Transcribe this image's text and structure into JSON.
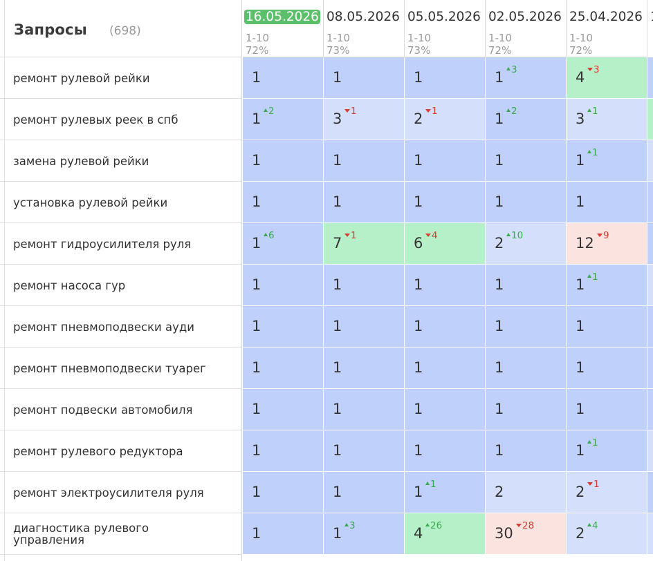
{
  "header": {
    "title": "Запросы",
    "count": "(698)"
  },
  "dates": [
    {
      "label": "16.05.2026",
      "range": "1-10",
      "pct": "72%",
      "active": true
    },
    {
      "label": "08.05.2026",
      "range": "1-10",
      "pct": "73%",
      "active": false
    },
    {
      "label": "05.05.2026",
      "range": "1-10",
      "pct": "73%",
      "active": false
    },
    {
      "label": "02.05.2026",
      "range": "1-10",
      "pct": "72%",
      "active": false
    },
    {
      "label": "25.04.2026",
      "range": "1-10",
      "pct": "72%",
      "active": false
    }
  ],
  "next_column_partial_label": "1",
  "rows": [
    {
      "query": "ремонт рулевой рейки",
      "cells": [
        {
          "value": "1",
          "delta": "",
          "dir": "",
          "tone": "top"
        },
        {
          "value": "1",
          "delta": "",
          "dir": "",
          "tone": "top"
        },
        {
          "value": "1",
          "delta": "",
          "dir": "",
          "tone": "top"
        },
        {
          "value": "1",
          "delta": "3",
          "dir": "up",
          "tone": "top"
        },
        {
          "value": "4",
          "delta": "3",
          "dir": "down",
          "tone": "good"
        }
      ],
      "edge_tone": "top"
    },
    {
      "query": "ремонт рулевых реек в спб",
      "cells": [
        {
          "value": "1",
          "delta": "2",
          "dir": "up",
          "tone": "top"
        },
        {
          "value": "3",
          "delta": "1",
          "dir": "down",
          "tone": "mid"
        },
        {
          "value": "2",
          "delta": "1",
          "dir": "down",
          "tone": "mid"
        },
        {
          "value": "1",
          "delta": "2",
          "dir": "up",
          "tone": "top"
        },
        {
          "value": "3",
          "delta": "1",
          "dir": "up",
          "tone": "mid"
        }
      ],
      "edge_tone": "good"
    },
    {
      "query": "замена рулевой рейки",
      "cells": [
        {
          "value": "1",
          "delta": "",
          "dir": "",
          "tone": "top"
        },
        {
          "value": "1",
          "delta": "",
          "dir": "",
          "tone": "top"
        },
        {
          "value": "1",
          "delta": "",
          "dir": "",
          "tone": "top"
        },
        {
          "value": "1",
          "delta": "",
          "dir": "",
          "tone": "top"
        },
        {
          "value": "1",
          "delta": "1",
          "dir": "up",
          "tone": "top"
        }
      ],
      "edge_tone": "mid"
    },
    {
      "query": "установка рулевой рейки",
      "cells": [
        {
          "value": "1",
          "delta": "",
          "dir": "",
          "tone": "top"
        },
        {
          "value": "1",
          "delta": "",
          "dir": "",
          "tone": "top"
        },
        {
          "value": "1",
          "delta": "",
          "dir": "",
          "tone": "top"
        },
        {
          "value": "1",
          "delta": "",
          "dir": "",
          "tone": "top"
        },
        {
          "value": "1",
          "delta": "",
          "dir": "",
          "tone": "top"
        }
      ],
      "edge_tone": "top"
    },
    {
      "query": "ремонт гидроусилителя руля",
      "cells": [
        {
          "value": "1",
          "delta": "6",
          "dir": "up",
          "tone": "top"
        },
        {
          "value": "7",
          "delta": "1",
          "dir": "down",
          "tone": "good"
        },
        {
          "value": "6",
          "delta": "4",
          "dir": "down",
          "tone": "good"
        },
        {
          "value": "2",
          "delta": "10",
          "dir": "up",
          "tone": "mid"
        },
        {
          "value": "12",
          "delta": "9",
          "dir": "down",
          "tone": "bad"
        }
      ],
      "edge_tone": "top"
    },
    {
      "query": "ремонт насоса гур",
      "cells": [
        {
          "value": "1",
          "delta": "",
          "dir": "",
          "tone": "top"
        },
        {
          "value": "1",
          "delta": "",
          "dir": "",
          "tone": "top"
        },
        {
          "value": "1",
          "delta": "",
          "dir": "",
          "tone": "top"
        },
        {
          "value": "1",
          "delta": "",
          "dir": "",
          "tone": "top"
        },
        {
          "value": "1",
          "delta": "1",
          "dir": "up",
          "tone": "top"
        }
      ],
      "edge_tone": "mid"
    },
    {
      "query": "ремонт пневмоподвески ауди",
      "cells": [
        {
          "value": "1",
          "delta": "",
          "dir": "",
          "tone": "top"
        },
        {
          "value": "1",
          "delta": "",
          "dir": "",
          "tone": "top"
        },
        {
          "value": "1",
          "delta": "",
          "dir": "",
          "tone": "top"
        },
        {
          "value": "1",
          "delta": "",
          "dir": "",
          "tone": "top"
        },
        {
          "value": "1",
          "delta": "",
          "dir": "",
          "tone": "top"
        }
      ],
      "edge_tone": "top"
    },
    {
      "query": "ремонт пневмоподвески туарег",
      "cells": [
        {
          "value": "1",
          "delta": "",
          "dir": "",
          "tone": "top"
        },
        {
          "value": "1",
          "delta": "",
          "dir": "",
          "tone": "top"
        },
        {
          "value": "1",
          "delta": "",
          "dir": "",
          "tone": "top"
        },
        {
          "value": "1",
          "delta": "",
          "dir": "",
          "tone": "top"
        },
        {
          "value": "1",
          "delta": "",
          "dir": "",
          "tone": "top"
        }
      ],
      "edge_tone": "top"
    },
    {
      "query": "ремонт подвески автомобиля",
      "cells": [
        {
          "value": "1",
          "delta": "",
          "dir": "",
          "tone": "top"
        },
        {
          "value": "1",
          "delta": "",
          "dir": "",
          "tone": "top"
        },
        {
          "value": "1",
          "delta": "",
          "dir": "",
          "tone": "top"
        },
        {
          "value": "1",
          "delta": "",
          "dir": "",
          "tone": "top"
        },
        {
          "value": "1",
          "delta": "",
          "dir": "",
          "tone": "top"
        }
      ],
      "edge_tone": "top"
    },
    {
      "query": "ремонт рулевого редуктора",
      "cells": [
        {
          "value": "1",
          "delta": "",
          "dir": "",
          "tone": "top"
        },
        {
          "value": "1",
          "delta": "",
          "dir": "",
          "tone": "top"
        },
        {
          "value": "1",
          "delta": "",
          "dir": "",
          "tone": "top"
        },
        {
          "value": "1",
          "delta": "",
          "dir": "",
          "tone": "top"
        },
        {
          "value": "1",
          "delta": "1",
          "dir": "up",
          "tone": "top"
        }
      ],
      "edge_tone": "mid"
    },
    {
      "query": "ремонт электроусилителя руля",
      "cells": [
        {
          "value": "1",
          "delta": "",
          "dir": "",
          "tone": "top"
        },
        {
          "value": "1",
          "delta": "",
          "dir": "",
          "tone": "top"
        },
        {
          "value": "1",
          "delta": "1",
          "dir": "up",
          "tone": "top"
        },
        {
          "value": "2",
          "delta": "",
          "dir": "",
          "tone": "mid"
        },
        {
          "value": "2",
          "delta": "1",
          "dir": "down",
          "tone": "mid"
        }
      ],
      "edge_tone": "top"
    },
    {
      "query": "диагностика рулевого управления",
      "cells": [
        {
          "value": "1",
          "delta": "",
          "dir": "",
          "tone": "top"
        },
        {
          "value": "1",
          "delta": "3",
          "dir": "up",
          "tone": "top"
        },
        {
          "value": "4",
          "delta": "26",
          "dir": "up",
          "tone": "good"
        },
        {
          "value": "30",
          "delta": "28",
          "dir": "down",
          "tone": "bad"
        },
        {
          "value": "2",
          "delta": "4",
          "dir": "up",
          "tone": "mid"
        }
      ],
      "edge_tone": "mid"
    }
  ]
}
